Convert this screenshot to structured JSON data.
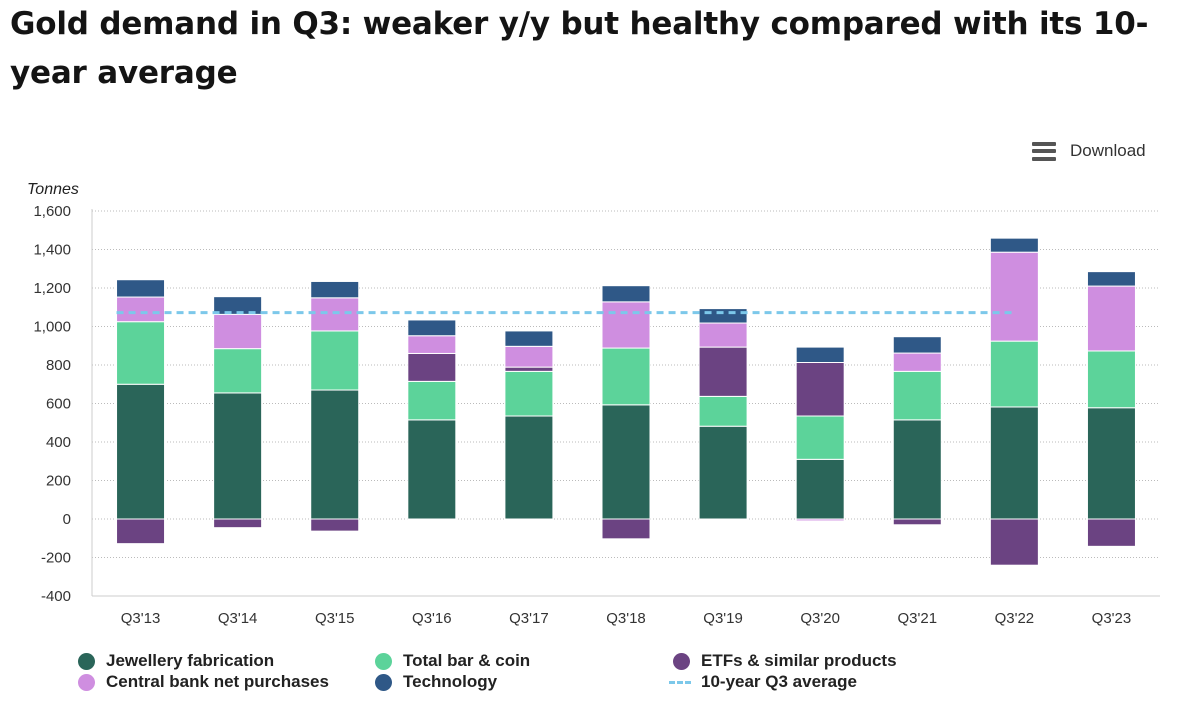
{
  "title": "Gold demand in Q3: weaker y/y but healthy compared with its 10-year average",
  "download_label": "Download",
  "colors": {
    "jewellery": "#2a6559",
    "barcoin": "#5cd39a",
    "etf": "#6b4382",
    "central": "#cf8ee0",
    "tech": "#2f5887",
    "average": "#7cc8ea",
    "grid": "#bbbbbb",
    "axis": "#cccccc"
  },
  "chart_data": {
    "type": "bar",
    "stacked": true,
    "ylabel": "Tonnes",
    "ylim": [
      -400,
      1600
    ],
    "yticks": [
      1600,
      1400,
      1200,
      1000,
      800,
      600,
      400,
      200,
      0,
      -200,
      -400
    ],
    "ytick_labels": [
      "1,600",
      "1,400",
      "1,200",
      "1,000",
      "800",
      "600",
      "400",
      "200",
      "0",
      "-200",
      "-400"
    ],
    "categories": [
      "Q3'13",
      "Q3'14",
      "Q3'15",
      "Q3'16",
      "Q3'17",
      "Q3'18",
      "Q3'19",
      "Q3'20",
      "Q3'21",
      "Q3'22",
      "Q3'23"
    ],
    "series": [
      {
        "name": "Jewellery fabrication",
        "key": "jewellery",
        "values": [
          700,
          655,
          670,
          515,
          535,
          593,
          482,
          310,
          515,
          582,
          578
        ]
      },
      {
        "name": "Total bar & coin",
        "key": "barcoin",
        "values": [
          325,
          230,
          307,
          200,
          232,
          295,
          155,
          225,
          252,
          342,
          295
        ]
      },
      {
        "name": "ETFs & similar products",
        "key": "etf",
        "values": [
          -128,
          -45,
          -63,
          145,
          22,
          -103,
          256,
          278,
          -30,
          -240,
          -142
        ]
      },
      {
        "name": "Central bank net purchases",
        "key": "central",
        "values": [
          128,
          178,
          172,
          92,
          108,
          240,
          125,
          -10,
          95,
          462,
          337
        ]
      },
      {
        "name": "Technology",
        "key": "tech",
        "values": [
          90,
          92,
          85,
          82,
          80,
          84,
          75,
          80,
          85,
          73,
          75
        ]
      }
    ],
    "average": {
      "name": "10-year Q3 average",
      "value": 1072
    }
  }
}
